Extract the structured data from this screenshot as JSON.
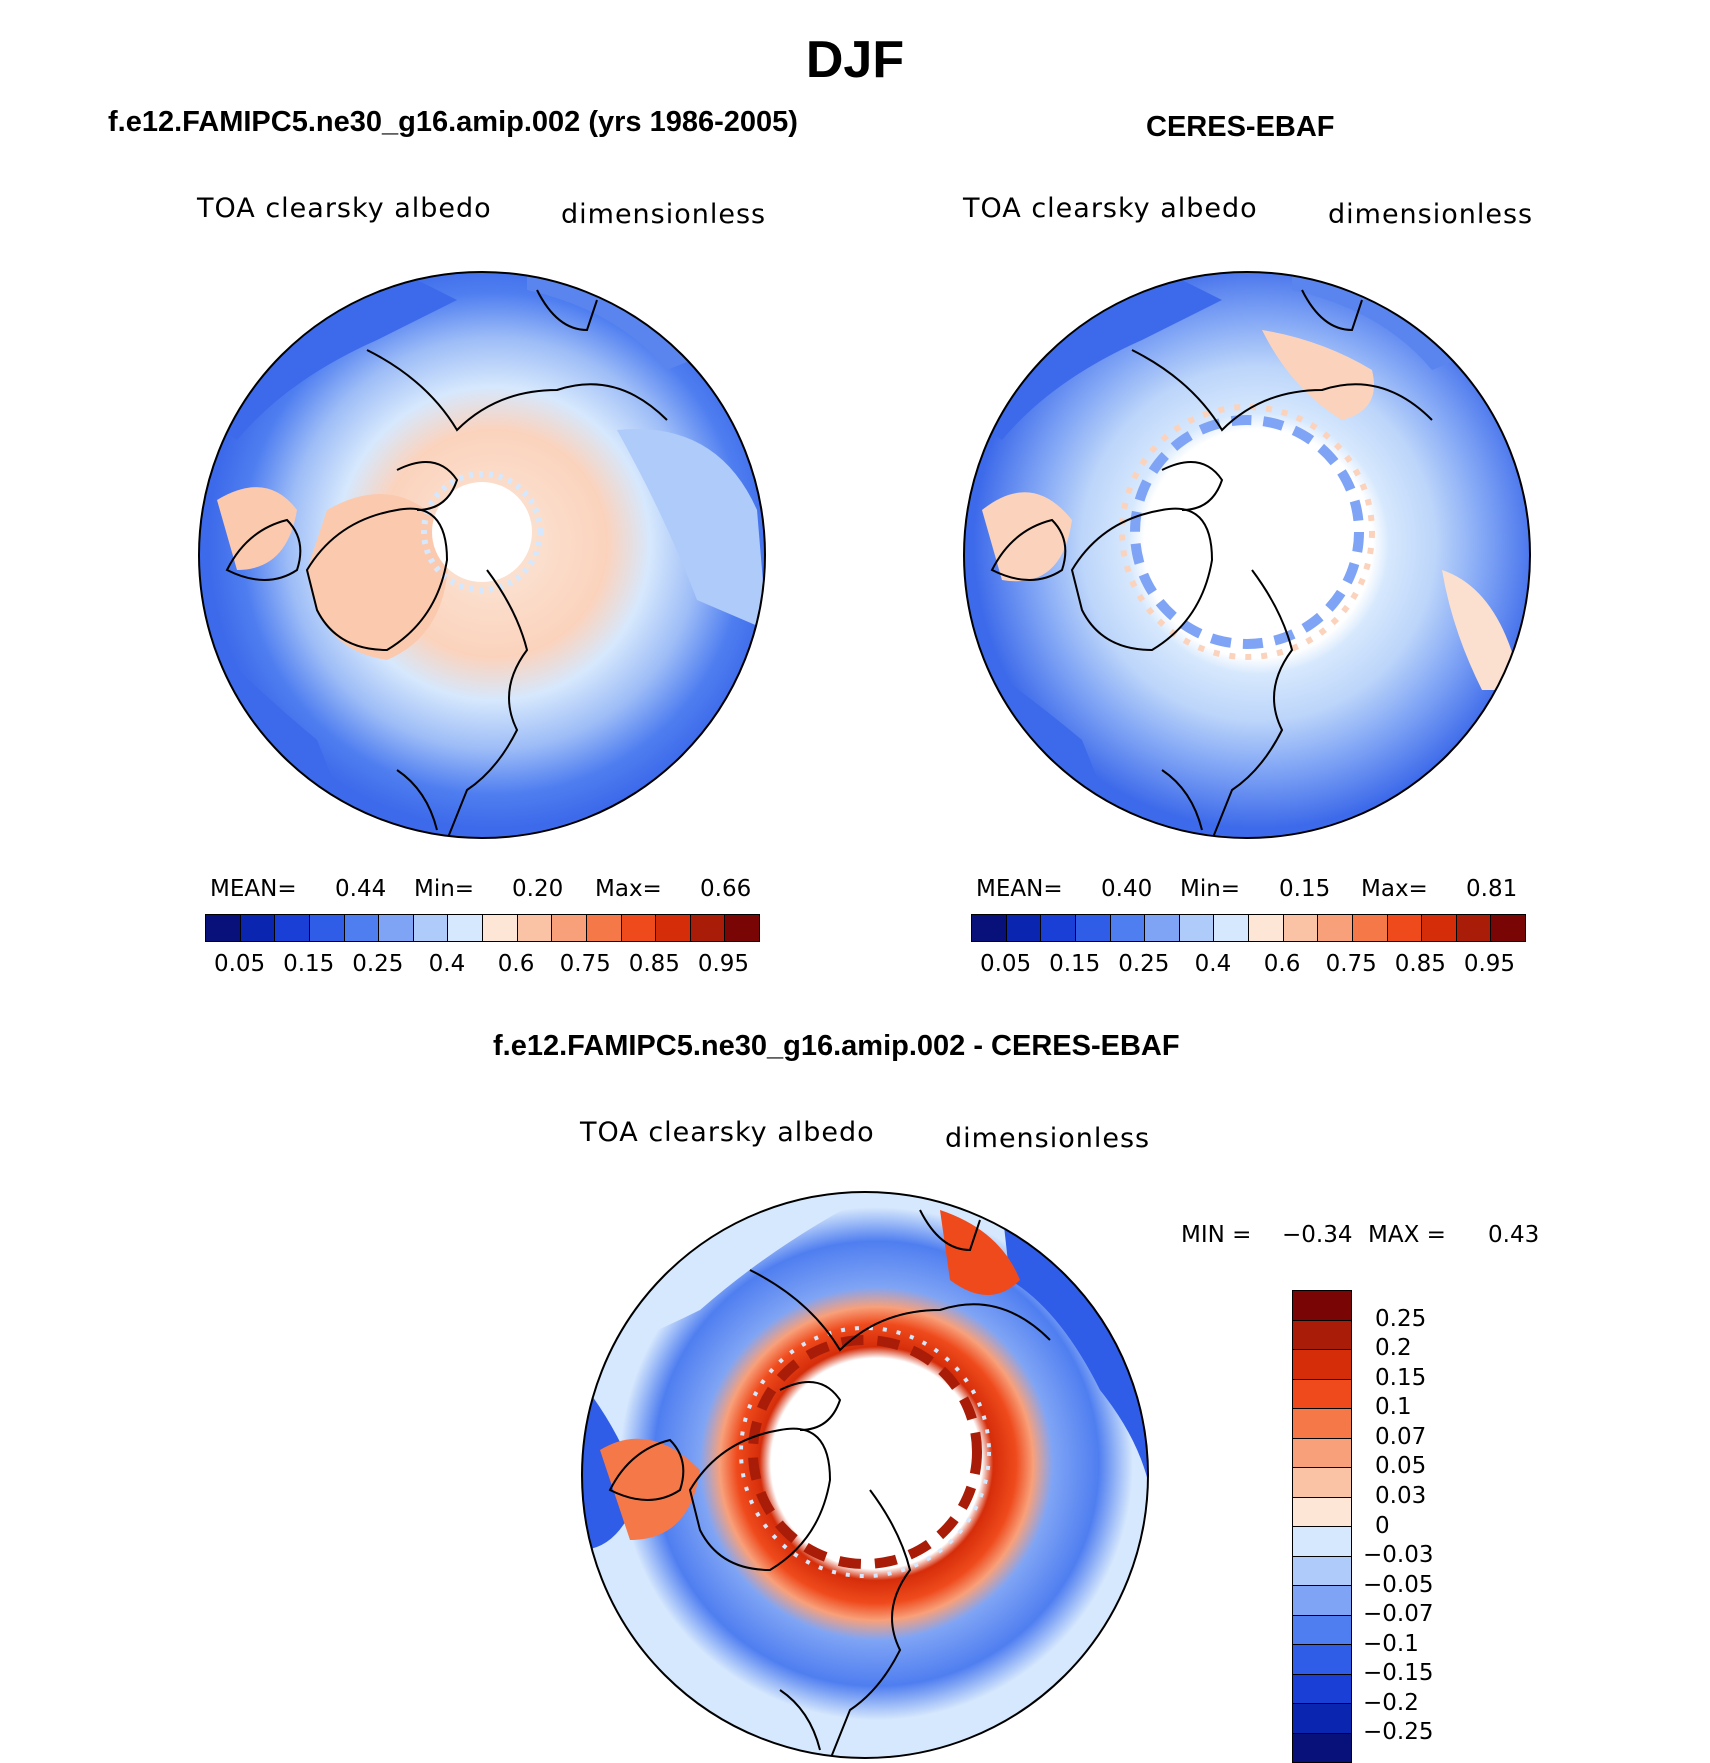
{
  "figure": {
    "title": "DJF"
  },
  "panels": {
    "model": {
      "title": "f.e12.FAMIPC5.ne30_g16.amip.002 (yrs 1986-2005)",
      "left_label": "TOA clearsky albedo",
      "right_label": "dimensionless",
      "stats": {
        "mean_label": "MEAN=",
        "mean": "0.44",
        "min_label": "Min=",
        "min": "0.20",
        "max_label": "Max=",
        "max": "0.66"
      }
    },
    "obs": {
      "title": "CERES-EBAF",
      "left_label": "TOA clearsky albedo",
      "right_label": "dimensionless",
      "stats": {
        "mean_label": "MEAN=",
        "mean": "0.40",
        "min_label": "Min=",
        "min": "0.15",
        "max_label": "Max=",
        "max": "0.81"
      }
    },
    "diff": {
      "title": "f.e12.FAMIPC5.ne30_g16.amip.002 - CERES-EBAF",
      "left_label": "TOA clearsky albedo",
      "right_label": "dimensionless",
      "stats": {
        "min_label": "MIN =",
        "min": "−0.34",
        "max_label": "MAX =",
        "max": "0.43"
      }
    }
  },
  "colorbars": {
    "albedo": {
      "labels": [
        "0.05",
        "0.15",
        "0.25",
        "0.4",
        "0.6",
        "0.75",
        "0.85",
        "0.95"
      ],
      "colors": [
        "#08107a",
        "#0a25b0",
        "#1a3fd6",
        "#2f5de8",
        "#4f7ef0",
        "#7fa4f5",
        "#aecbf9",
        "#d6e8fd",
        "#fde6d6",
        "#fbc3a6",
        "#f8a07a",
        "#f57849",
        "#ef4a1c",
        "#d52d0a",
        "#a91c07",
        "#7a0505"
      ]
    },
    "difference": {
      "labels": [
        "0.25",
        "0.2",
        "0.15",
        "0.1",
        "0.07",
        "0.05",
        "0.03",
        "0",
        "−0.03",
        "−0.05",
        "−0.07",
        "−0.1",
        "−0.15",
        "−0.2",
        "−0.25"
      ],
      "colors": [
        "#7a0505",
        "#a91c07",
        "#d52d0a",
        "#ef4a1c",
        "#f57849",
        "#f8a07a",
        "#fbc3a6",
        "#fde6d6",
        "#d6e8fd",
        "#aecbf9",
        "#7fa4f5",
        "#4f7ef0",
        "#2f5de8",
        "#1a3fd6",
        "#0a25b0",
        "#08107a"
      ]
    }
  },
  "map_data": [
    {
      "panel": "model",
      "projection": "north-polar-stereographic",
      "variable": "TOA clearsky albedo",
      "season": "DJF",
      "field": "model albedo",
      "range": [
        0.2,
        0.66
      ]
    },
    {
      "panel": "obs",
      "projection": "north-polar-stereographic",
      "variable": "TOA clearsky albedo",
      "season": "DJF",
      "field": "observed albedo",
      "range": [
        0.15,
        0.81
      ]
    },
    {
      "panel": "diff",
      "projection": "north-polar-stereographic",
      "variable": "TOA clearsky albedo",
      "season": "DJF",
      "field": "model minus observations",
      "range": [
        -0.34,
        0.43
      ]
    }
  ]
}
